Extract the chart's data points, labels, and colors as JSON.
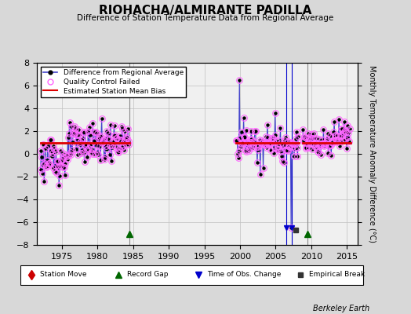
{
  "title": "RIOHACHA/ALMIRANTE PADILLA",
  "subtitle": "Difference of Station Temperature Data from Regional Average",
  "ylabel": "Monthly Temperature Anomaly Difference (°C)",
  "xlabel_label": "Berkeley Earth",
  "background_color": "#d8d8d8",
  "plot_bg_color": "#f0f0f0",
  "ylim": [
    -8,
    8
  ],
  "xlim": [
    1971.5,
    2016.5
  ],
  "yticks": [
    -8,
    -6,
    -4,
    -2,
    0,
    2,
    4,
    6,
    8
  ],
  "xticks": [
    1975,
    1980,
    1985,
    1990,
    1995,
    2000,
    2005,
    2010,
    2015
  ],
  "grid_color": "#c0c0c0",
  "line_color": "#4444cc",
  "dot_color": "#000000",
  "bias_color": "#dd0000",
  "qc_color": "#ff66ff",
  "station_move_color": "#cc0000",
  "record_gap_color": "#006600",
  "obs_change_color": "#0000cc",
  "emp_break_color": "#333333",
  "segments": [
    {
      "start": 1972.0,
      "end": 1984.5,
      "bias": 1.0
    },
    {
      "start": 1999.5,
      "end": 2008.3,
      "bias": 1.0
    },
    {
      "start": 2008.8,
      "end": 2015.5,
      "bias": 1.0
    }
  ],
  "record_gaps": [
    1984.5,
    2009.5
  ],
  "obs_changes": [
    2006.5,
    2007.3
  ],
  "emp_breaks": [
    2007.8
  ],
  "vertical_lines": [
    1984.5,
    2009.5
  ]
}
